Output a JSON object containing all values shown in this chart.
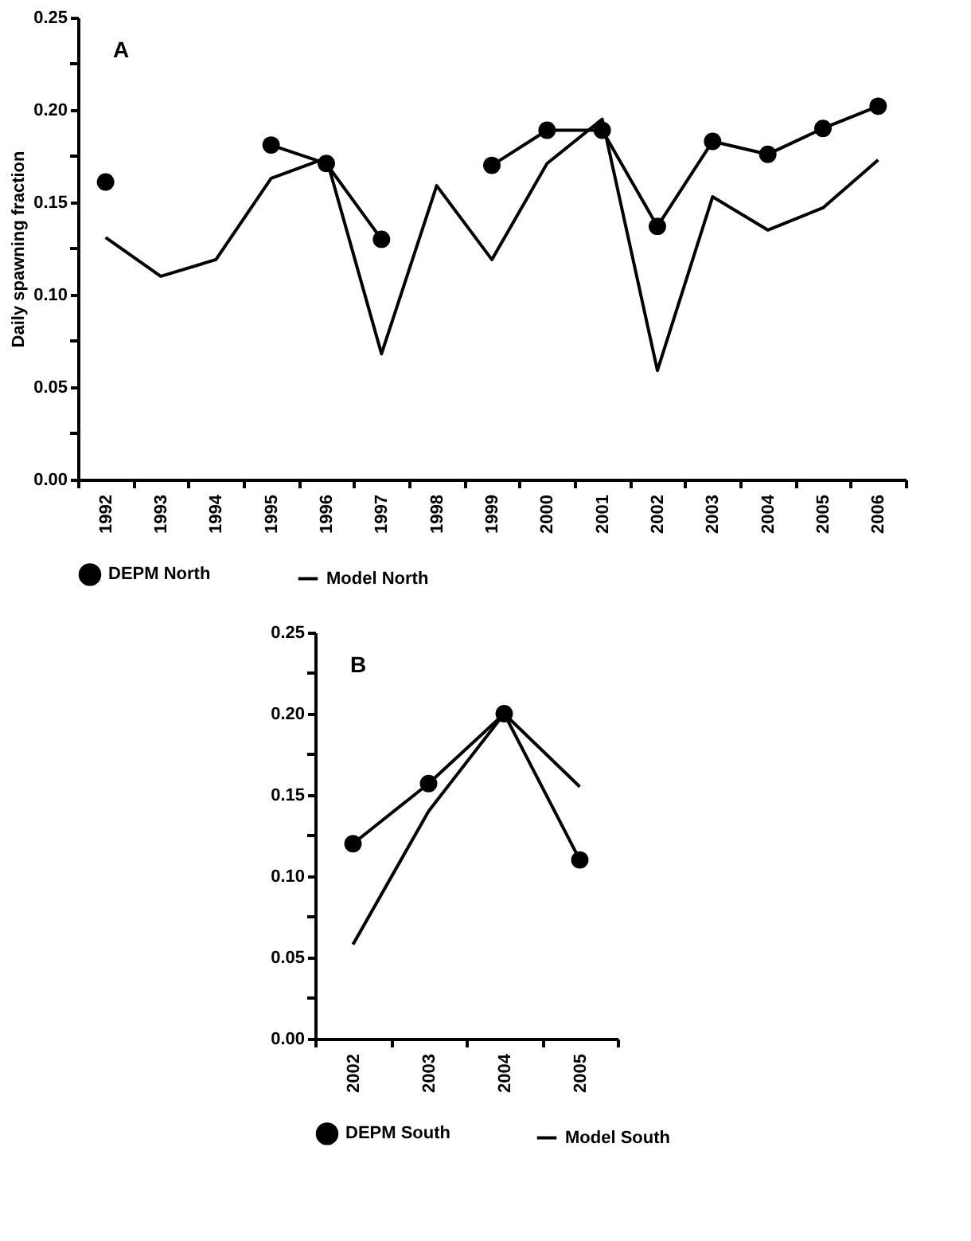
{
  "chart_data": [
    {
      "type": "line",
      "annotations": [
        "A"
      ],
      "ylabel": "Daily spawning fraction",
      "categories": [
        "1992",
        "1993",
        "1994",
        "1995",
        "1996",
        "1997",
        "1998",
        "1999",
        "2000",
        "2001",
        "2002",
        "2003",
        "2004",
        "2005",
        "2006"
      ],
      "ylim": [
        0,
        0.25
      ],
      "yticks": [
        {
          "value": 0,
          "label": "0.00"
        },
        {
          "value": 0.025,
          "label": null
        },
        {
          "value": 0.05,
          "label": "0.05"
        },
        {
          "value": 0.075,
          "label": null
        },
        {
          "value": 0.1,
          "label": "0.10"
        },
        {
          "value": 0.125,
          "label": null
        },
        {
          "value": 0.15,
          "label": "0.15"
        },
        {
          "value": 0.175,
          "label": null
        },
        {
          "value": 0.2,
          "label": "0.20"
        },
        {
          "value": 0.225,
          "label": null
        },
        {
          "value": 0.25,
          "label": "0.25"
        }
      ],
      "grid": false,
      "legend": "bottom",
      "series": [
        {
          "name": "DEPM North",
          "color": "#000000",
          "marker": "circle",
          "values": [
            0.161,
            null,
            null,
            0.181,
            0.171,
            0.13,
            null,
            0.17,
            0.189,
            0.189,
            0.137,
            0.183,
            0.176,
            0.19,
            0.202
          ]
        },
        {
          "name": "Model North",
          "color": "#000000",
          "marker": "none",
          "values": [
            0.131,
            0.11,
            0.119,
            0.163,
            0.174,
            0.068,
            0.159,
            0.119,
            0.171,
            0.195,
            0.059,
            0.153,
            0.135,
            0.147,
            0.173
          ]
        }
      ]
    },
    {
      "type": "line",
      "annotations": [
        "B"
      ],
      "categories": [
        "2002",
        "2003",
        "2004",
        "2005"
      ],
      "ylim": [
        0,
        0.25
      ],
      "yticks": [
        {
          "value": 0,
          "label": "0.00"
        },
        {
          "value": 0.025,
          "label": null
        },
        {
          "value": 0.05,
          "label": "0.05"
        },
        {
          "value": 0.075,
          "label": null
        },
        {
          "value": 0.1,
          "label": "0.10"
        },
        {
          "value": 0.125,
          "label": null
        },
        {
          "value": 0.15,
          "label": "0.15"
        },
        {
          "value": 0.175,
          "label": null
        },
        {
          "value": 0.2,
          "label": "0.20"
        },
        {
          "value": 0.225,
          "label": null
        },
        {
          "value": 0.25,
          "label": "0.25"
        }
      ],
      "grid": false,
      "legend": "bottom",
      "series": [
        {
          "name": "DEPM South",
          "color": "#000000",
          "marker": "circle",
          "values": [
            0.12,
            0.157,
            0.2,
            0.11
          ]
        },
        {
          "name": "Model South",
          "color": "#000000",
          "marker": "none",
          "values": [
            0.058,
            0.14,
            0.2,
            0.155
          ]
        }
      ]
    }
  ]
}
